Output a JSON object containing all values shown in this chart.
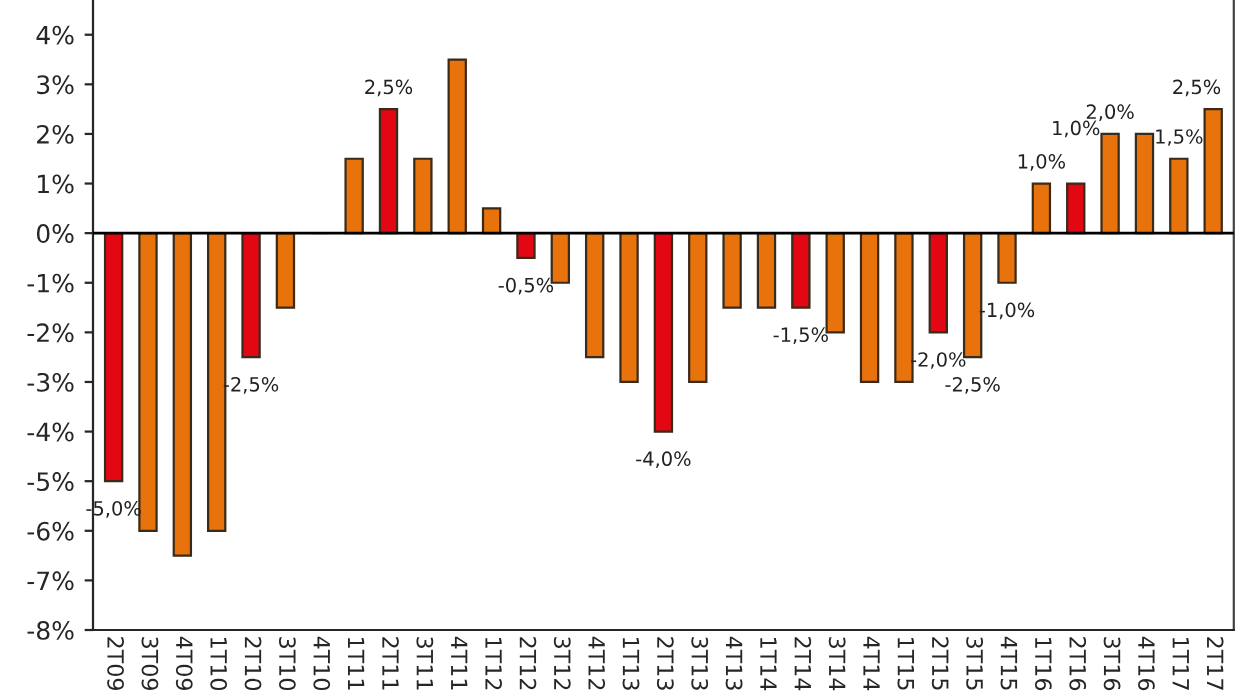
{
  "chart_data": {
    "type": "bar",
    "categories": [
      "2T09",
      "3T09",
      "4T09",
      "1T10",
      "2T10",
      "3T10",
      "4T10",
      "1T11",
      "2T11",
      "3T11",
      "4T11",
      "1T12",
      "2T12",
      "3T12",
      "4T12",
      "1T13",
      "2T13",
      "3T13",
      "4T13",
      "1T14",
      "2T14",
      "3T14",
      "4T14",
      "1T15",
      "2T15",
      "3T15",
      "4T15",
      "1T16",
      "2T16",
      "3T16",
      "4T16",
      "1T17",
      "2T17"
    ],
    "values": [
      -5.0,
      -6.0,
      -6.5,
      -6.0,
      -2.5,
      -1.5,
      0,
      1.5,
      2.5,
      1.5,
      3.5,
      0.5,
      -0.5,
      -1.0,
      -2.5,
      -3.0,
      -4.0,
      -3.0,
      -1.5,
      -1.5,
      -1.5,
      -2.0,
      -3.0,
      -3.0,
      -2.0,
      -2.5,
      -1.0,
      1.0,
      1.0,
      2.0,
      2.0,
      1.5,
      2.5
    ],
    "colors": [
      "#e30613",
      "#e8730c",
      "#e8730c",
      "#e8730c",
      "#e30613",
      "#e8730c",
      "#e8730c",
      "#e8730c",
      "#e30613",
      "#e8730c",
      "#e8730c",
      "#e8730c",
      "#e30613",
      "#e8730c",
      "#e8730c",
      "#e8730c",
      "#e30613",
      "#e8730c",
      "#e8730c",
      "#e8730c",
      "#e30613",
      "#e8730c",
      "#e8730c",
      "#e8730c",
      "#e30613",
      "#e8730c",
      "#e8730c",
      "#e8730c",
      "#e30613",
      "#e8730c",
      "#e8730c",
      "#e8730c",
      "#e8730c"
    ],
    "value_labels": [
      "-5,0%",
      null,
      null,
      null,
      "-2,5%",
      null,
      null,
      null,
      "2,5%",
      null,
      null,
      null,
      "-0,5%",
      null,
      null,
      null,
      "-4,0%",
      null,
      null,
      null,
      "-1,5%",
      null,
      null,
      null,
      "-2,0%",
      "-2,5%",
      "-1,0%",
      "1,0%",
      "1,0%",
      "2,0%",
      null,
      "1,5%",
      "2,5%"
    ],
    "ylim": [
      -8,
      4.7
    ],
    "yticks": [
      {
        "value": -8,
        "label": "-8%"
      },
      {
        "value": -7,
        "label": "-7%"
      },
      {
        "value": -6,
        "label": "-6%"
      },
      {
        "value": -5,
        "label": "-5%"
      },
      {
        "value": -4,
        "label": "-4%"
      },
      {
        "value": -3,
        "label": "-3%"
      },
      {
        "value": -2,
        "label": "-2%"
      },
      {
        "value": -1,
        "label": "-1%"
      },
      {
        "value": 0,
        "label": "0%"
      },
      {
        "value": 1,
        "label": "1%"
      },
      {
        "value": 2,
        "label": "2%"
      },
      {
        "value": 3,
        "label": "3%"
      },
      {
        "value": 4,
        "label": "4%"
      }
    ],
    "ref_lines": [
      {
        "axis": "y",
        "value": 0,
        "color": "#000000",
        "line_style": "solid"
      }
    ],
    "grid": false,
    "legend": false
  }
}
